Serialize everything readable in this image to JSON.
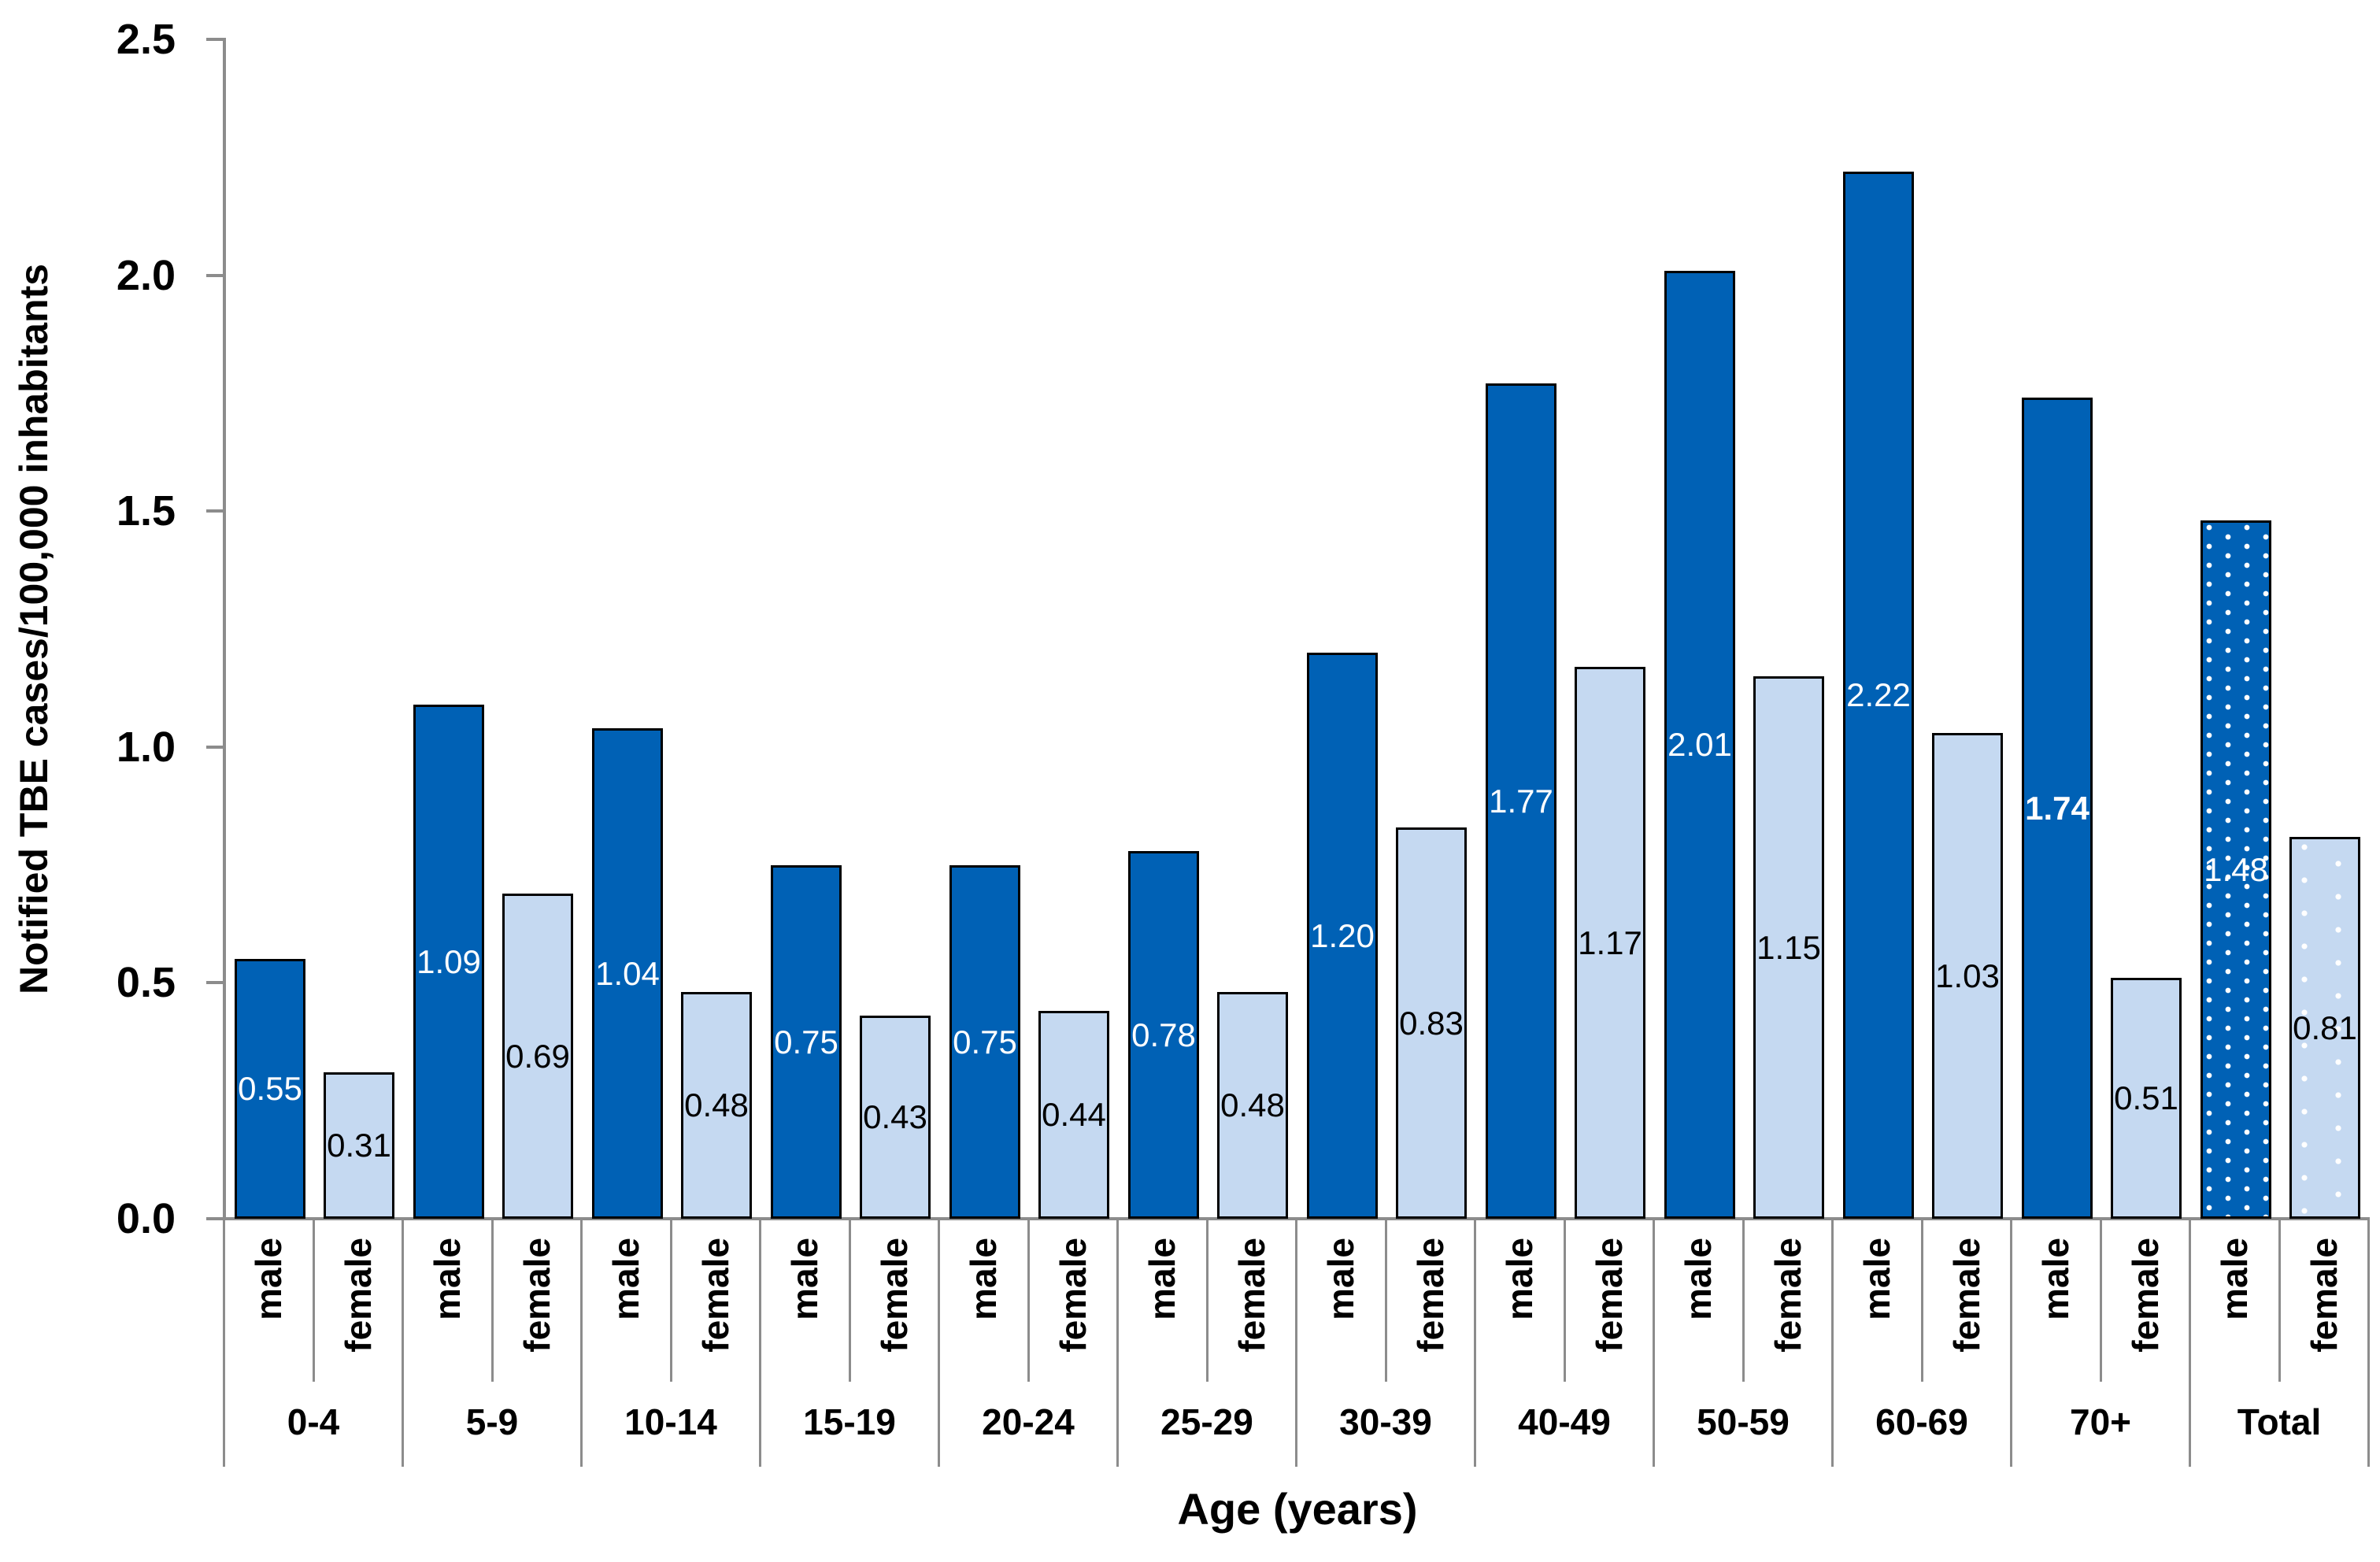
{
  "chart_data": {
    "type": "bar",
    "title": "",
    "ylabel": "Notified TBE cases/100,000 inhabitants",
    "xlabel": "Age (years)",
    "ylim": [
      0.0,
      2.5
    ],
    "y_ticks": [
      "0.0",
      "0.5",
      "1.0",
      "1.5",
      "2.0",
      "2.5"
    ],
    "grid": false,
    "legend_position": "none",
    "categories": [
      "0-4",
      "5-9",
      "10-14",
      "15-19",
      "20-24",
      "25-29",
      "30-39",
      "40-49",
      "50-59",
      "60-69",
      "70+",
      "Total"
    ],
    "series": [
      {
        "name": "male",
        "values": [
          0.55,
          1.09,
          1.04,
          0.75,
          0.75,
          0.78,
          1.2,
          1.77,
          2.01,
          2.22,
          1.74,
          1.48
        ],
        "labels": [
          "0.55",
          "1.09",
          "1.04",
          "0.75",
          "0.75",
          "0.78",
          "1.20",
          "1.77",
          "2.01",
          "2.22",
          "1.74",
          "1.48"
        ]
      },
      {
        "name": "female",
        "values": [
          0.31,
          0.69,
          0.48,
          0.43,
          0.44,
          0.48,
          0.83,
          1.17,
          1.15,
          1.03,
          0.51,
          0.81
        ],
        "labels": [
          "0.31",
          "0.69",
          "0.48",
          "0.43",
          "0.44",
          "0.48",
          "0.83",
          "1.17",
          "1.15",
          "1.03",
          "0.51",
          "0.81"
        ]
      }
    ],
    "sublabels": {
      "male": "male",
      "female": "female"
    },
    "annotations": {
      "bold_value_label": "70+ male (1.74)",
      "patterned_category": "Total (white dots on both bars)"
    },
    "colors": {
      "male_fill": "#0061B5",
      "female_fill": "#C5D9F1",
      "bar_border": "#000000",
      "axis_line": "#8C8C8C",
      "male_value_text": "#FFFFFF",
      "female_value_text": "#000000",
      "background": "#FFFFFF"
    }
  }
}
